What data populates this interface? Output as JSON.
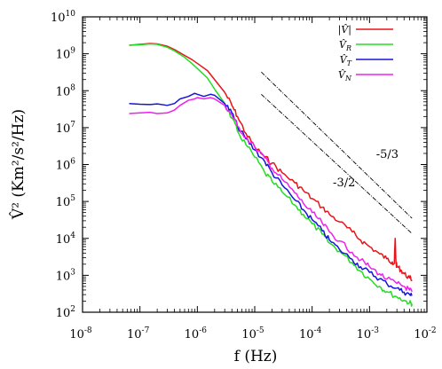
{
  "chart_data": {
    "type": "line",
    "xscale": "log",
    "yscale": "log",
    "xlim": [
      1e-08,
      0.01
    ],
    "ylim": [
      100,
      10000000000.0
    ],
    "xlabel": "f (Hz)",
    "ylabel": "V̂² (Km²/s²/Hz)",
    "x_ticks": [
      {
        "base": "10",
        "exp": "-8",
        "value": 1e-08
      },
      {
        "base": "10",
        "exp": "-7",
        "value": 1e-07
      },
      {
        "base": "10",
        "exp": "-6",
        "value": 1e-06
      },
      {
        "base": "10",
        "exp": "-5",
        "value": 1e-05
      },
      {
        "base": "10",
        "exp": "-4",
        "value": 0.0001
      },
      {
        "base": "10",
        "exp": "-3",
        "value": 0.001
      },
      {
        "base": "10",
        "exp": "-2",
        "value": 0.01
      }
    ],
    "y_ticks": [
      {
        "base": "10",
        "exp": "2",
        "value": 100.0
      },
      {
        "base": "10",
        "exp": "3",
        "value": 1000.0
      },
      {
        "base": "10",
        "exp": "4",
        "value": 10000.0
      },
      {
        "base": "10",
        "exp": "5",
        "value": 100000.0
      },
      {
        "base": "10",
        "exp": "6",
        "value": 1000000.0
      },
      {
        "base": "10",
        "exp": "7",
        "value": 10000000.0
      },
      {
        "base": "10",
        "exp": "8",
        "value": 100000000.0
      },
      {
        "base": "10",
        "exp": "9",
        "value": 1000000000.0
      },
      {
        "base": "10",
        "exp": "10",
        "value": 10000000000.0
      }
    ],
    "legend_position": "top-right",
    "series": [
      {
        "name": "|V̂|",
        "color": "#e8141a",
        "x": [
          6.5e-08,
          1e-07,
          1.5e-07,
          2e-07,
          3e-07,
          4e-07,
          6e-07,
          8e-07,
          1e-06,
          1.5e-06,
          2e-06,
          3e-06,
          4e-06,
          5e-06,
          7e-06,
          1e-05,
          1.5e-05,
          2e-05,
          3e-05,
          5e-05,
          7e-05,
          0.0001,
          0.00015,
          0.0002,
          0.0003,
          0.0005,
          0.0007,
          0.001,
          0.0015,
          0.002,
          0.0025,
          0.0027,
          0.0028,
          0.0029,
          0.003,
          0.0035,
          0.004,
          0.005,
          0.0055
        ],
        "y": [
          1700000000.0,
          1800000000.0,
          1900000000.0,
          1850000000.0,
          1600000000.0,
          1300000000.0,
          900000000.0,
          700000000.0,
          550000000.0,
          350000000.0,
          200000000.0,
          90000000.0,
          40000000.0,
          20000000.0,
          7000000.0,
          3000000.0,
          1600000.0,
          1100000.0,
          600000.0,
          320000.0,
          200000.0,
          120000.0,
          70000.0,
          45000.0,
          28000.0,
          15000.0,
          9000.0,
          6000.0,
          3800.0,
          2800.0,
          2300.0,
          2100.0,
          10000.0,
          2000.0,
          1800.0,
          1400.0,
          1100.0,
          850.0,
          750.0
        ]
      },
      {
        "name": "V̂_R",
        "color": "#22dd22",
        "x": [
          6.5e-08,
          1e-07,
          1.5e-07,
          2e-07,
          3e-07,
          4e-07,
          6e-07,
          8e-07,
          1e-06,
          1.5e-06,
          2e-06,
          3e-06,
          4e-06,
          5e-06,
          7e-06,
          1e-05,
          1.5e-05,
          2e-05,
          3e-05,
          5e-05,
          7e-05,
          0.0001,
          0.00015,
          0.0002,
          0.0003,
          0.0005,
          0.0007,
          0.001,
          0.0015,
          0.002,
          0.003,
          0.004,
          0.005,
          0.0055
        ],
        "y": [
          1700000000.0,
          1750000000.0,
          1850000000.0,
          1800000000.0,
          1500000000.0,
          1200000000.0,
          800000000.0,
          550000000.0,
          400000000.0,
          220000000.0,
          110000000.0,
          45000000.0,
          18000000.0,
          8000000.0,
          3500000.0,
          1600000.0,
          600000.0,
          350000.0,
          180000.0,
          80000.0,
          45000.0,
          25000.0,
          13000.0,
          7500.0,
          4500.0,
          2200.0,
          1300.0,
          800.0,
          500.0,
          360.0,
          260.0,
          210.0,
          180.0,
          170.0
        ]
      },
      {
        "name": "V̂_T",
        "color": "#1515d8",
        "x": [
          6.5e-08,
          1e-07,
          1.5e-07,
          2e-07,
          3e-07,
          4e-07,
          5e-07,
          7e-07,
          9e-07,
          1e-06,
          1.3e-06,
          1.7e-06,
          2e-06,
          3e-06,
          4e-06,
          5e-06,
          7e-06,
          1e-05,
          1.5e-05,
          2e-05,
          3e-05,
          5e-05,
          7e-05,
          0.0001,
          0.00015,
          0.0002,
          0.0003,
          0.0005,
          0.0007,
          0.001,
          0.0015,
          0.002,
          0.003,
          0.004,
          0.005,
          0.0055
        ],
        "y": [
          45000000.0,
          43000000.0,
          42000000.0,
          44000000.0,
          40000000.0,
          45000000.0,
          60000000.0,
          70000000.0,
          85000000.0,
          80000000.0,
          70000000.0,
          80000000.0,
          75000000.0,
          45000000.0,
          25000000.0,
          11000000.0,
          5000000.0,
          2500000.0,
          1200000.0,
          600000.0,
          280000.0,
          110000.0,
          60000.0,
          32000.0,
          16000.0,
          9000.0,
          5000.0,
          2700.0,
          1700.0,
          1200.0,
          800.0,
          600.0,
          450.0,
          350.0,
          300.0,
          280.0
        ]
      },
      {
        "name": "V̂_N",
        "color": "#ee22ee",
        "x": [
          6.5e-08,
          1e-07,
          1.5e-07,
          2e-07,
          3e-07,
          4e-07,
          5e-07,
          7e-07,
          9e-07,
          1e-06,
          1.3e-06,
          1.7e-06,
          2e-06,
          3e-06,
          4e-06,
          5e-06,
          7e-06,
          1e-05,
          1.5e-05,
          2e-05,
          3e-05,
          5e-05,
          7e-05,
          0.0001,
          0.00015,
          0.0002,
          0.0003,
          0.0005,
          0.0007,
          0.001,
          0.0015,
          0.002,
          0.003,
          0.004,
          0.005,
          0.0055
        ],
        "y": [
          24000000.0,
          25000000.0,
          26000000.0,
          24000000.0,
          25000000.0,
          30000000.0,
          40000000.0,
          55000000.0,
          60000000.0,
          65000000.0,
          60000000.0,
          65000000.0,
          60000000.0,
          40000000.0,
          22000000.0,
          11000000.0,
          5500000.0,
          3000000.0,
          1500000.0,
          800000.0,
          400000.0,
          170000.0,
          90000.0,
          50000.0,
          26000.0,
          15000.0,
          8500.0,
          4200.0,
          2600.0,
          1700.0,
          1100.0,
          800.0,
          600.0,
          500.0,
          400.0,
          360.0
        ]
      }
    ],
    "annotations": [
      {
        "text": "-5/3",
        "x": 0.0013,
        "y": 1500000.0
      },
      {
        "text": "-3/2",
        "x": 0.00023,
        "y": 260000.0
      }
    ],
    "reference_lines": [
      {
        "label": "-5/3",
        "x": [
          1.3e-05,
          0.0055
        ],
        "y": [
          320000000.0,
          35000.0
        ]
      },
      {
        "label": "-3/2",
        "x": [
          1.3e-05,
          0.0055
        ],
        "y": [
          80000000.0,
          13500.0
        ]
      }
    ]
  }
}
